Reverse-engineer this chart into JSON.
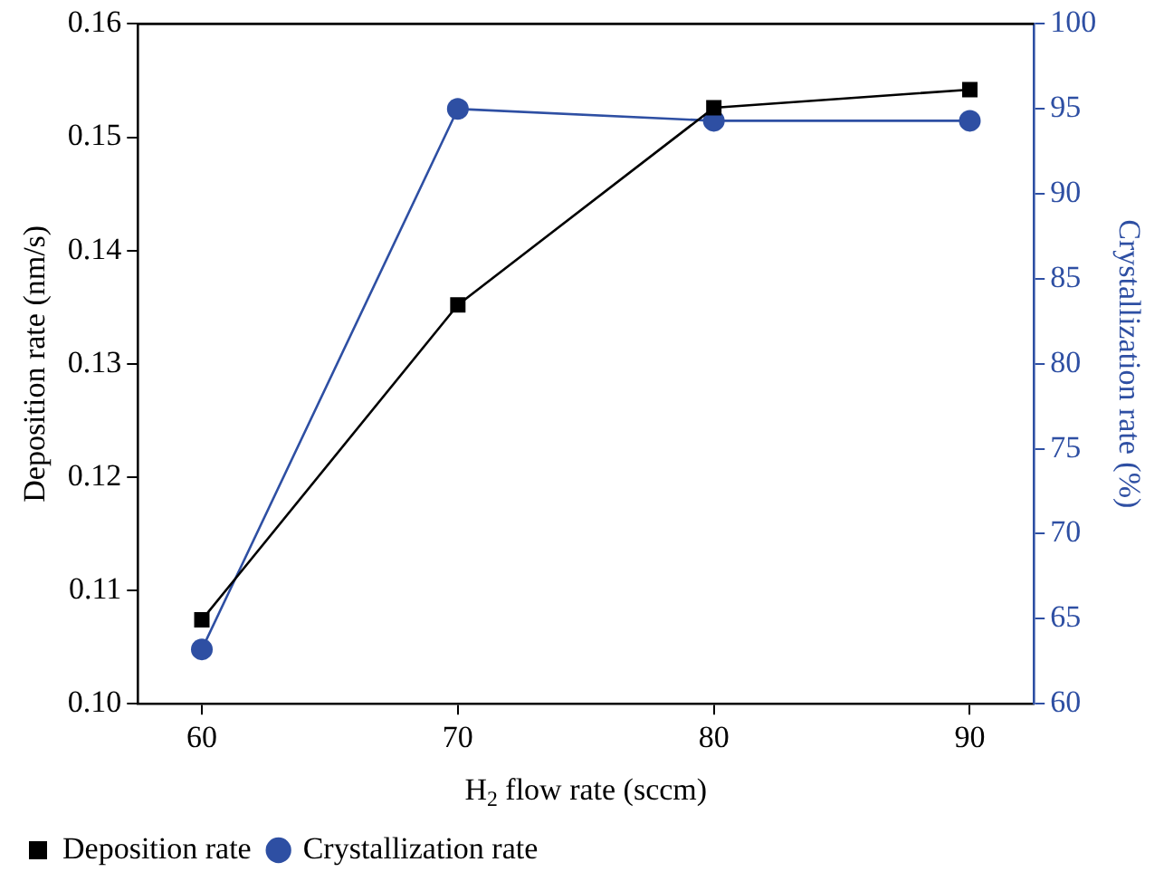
{
  "chart_data": {
    "type": "line",
    "xlabel": "H$_{2}$ flow rate (sccm)",
    "ylabel": "Deposition rate (nm/s)",
    "y2label": "Crystallization rate (%)",
    "x": [
      60,
      70,
      80,
      90
    ],
    "series": [
      {
        "name": "Deposition rate",
        "color": "#000000",
        "marker": "square",
        "values": [
          0.1074,
          0.1352,
          0.1526,
          0.1542
        ]
      },
      {
        "name": "Crystallization rate",
        "color": "#2e4fa3",
        "marker": "circle",
        "axis": "y2",
        "values": [
          63.2,
          95.0,
          94.3,
          94.3
        ]
      }
    ],
    "xlim": [
      57.5,
      92.5
    ],
    "xticks": [
      60,
      70,
      80,
      90
    ],
    "ylim": [
      0.1,
      0.16
    ],
    "yticks": [
      {
        "value": 0.1,
        "label": "0.10"
      },
      {
        "value": 0.11,
        "label": "0.11"
      },
      {
        "value": 0.12,
        "label": "0.12"
      },
      {
        "value": 0.13,
        "label": "0.13"
      },
      {
        "value": 0.14,
        "label": "0.14"
      },
      {
        "value": 0.15,
        "label": "0.15"
      },
      {
        "value": 0.16,
        "label": "0.16"
      }
    ],
    "y2lim": [
      60,
      100
    ],
    "y2ticks": [
      60,
      65,
      70,
      75,
      80,
      85,
      90,
      95,
      100
    ],
    "grid": false,
    "legend": "bottom left",
    "line_style": "solid"
  }
}
